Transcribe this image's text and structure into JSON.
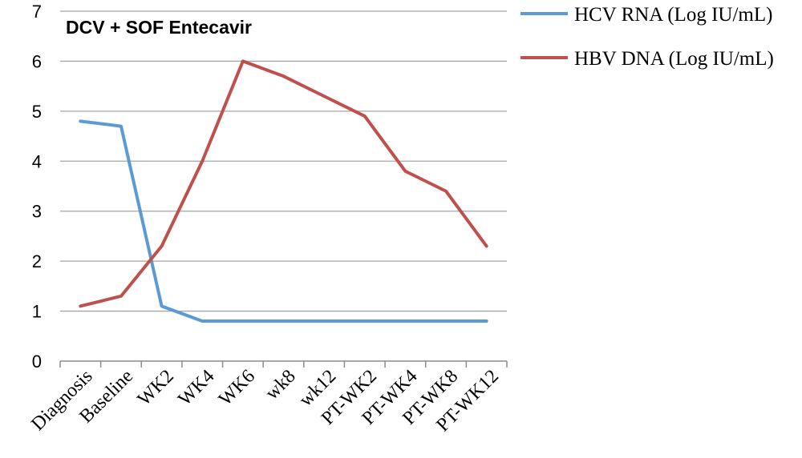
{
  "chart_data": {
    "type": "line",
    "title": "DCV + SOF  Entecavir",
    "xlabel": "",
    "ylabel": "",
    "ylim": [
      0,
      7
    ],
    "yticks": [
      "0",
      "1",
      "2",
      "3",
      "4",
      "5",
      "6",
      "7"
    ],
    "categories": [
      "Diagnosis",
      "Baseline",
      "WK2",
      "WK4",
      "WK6",
      "wk8",
      "wk12",
      "PT-WK2",
      "PT-WK4",
      "PT-WK8",
      "PT-WK12"
    ],
    "series": [
      {
        "name": "HCV RNA (Log IU/mL)",
        "color": "#5b9bd5",
        "values": [
          4.8,
          4.7,
          1.1,
          0.8,
          0.8,
          0.8,
          0.8,
          0.8,
          0.8,
          0.8,
          0.8
        ]
      },
      {
        "name": "HBV DNA (Log IU/mL)",
        "color": "#c0504d",
        "values": [
          1.1,
          1.3,
          2.3,
          4.0,
          6.0,
          5.7,
          5.3,
          4.9,
          3.8,
          3.4,
          2.3
        ]
      }
    ],
    "grid": true,
    "legend_position": "top-right"
  }
}
